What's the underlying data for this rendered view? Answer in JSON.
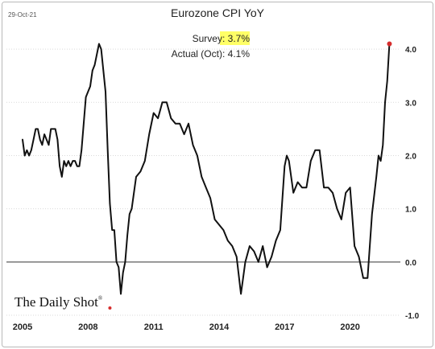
{
  "date_stamp": "29-Oct-21",
  "brand": "The Daily Shot",
  "brand_mark": "®",
  "colors": {
    "line": "#111111",
    "latest_point": "#d62d2d",
    "survey_highlight": "#ffff66"
  },
  "chart_data": {
    "type": "line",
    "title": "Eurozone CPI YoY",
    "annotations": [
      {
        "label": "Survey: ",
        "value": "3.7%",
        "highlight": true
      },
      {
        "label": "Actual (Oct): ",
        "value": "4.1%",
        "highlight": false
      }
    ],
    "xlabel": "",
    "ylabel": "",
    "xlim": [
      2005.0,
      2022.3
    ],
    "ylim": [
      -1.0,
      4.5
    ],
    "x_ticks": [
      2005,
      2008,
      2011,
      2014,
      2017,
      2020
    ],
    "x_tick_labels": [
      "2005",
      "2008",
      "2011",
      "2014",
      "2017",
      "2020"
    ],
    "y_ticks": [
      -1,
      0,
      1,
      2,
      3,
      4
    ],
    "y_tick_labels": [
      "-1.0",
      "0.0",
      "1.0",
      "2.0",
      "3.0",
      "4.0"
    ],
    "y_axis_side": "right",
    "grid": true,
    "legend": "none",
    "series": [
      {
        "x": [
          2005.0,
          2005.1,
          2005.2,
          2005.3,
          2005.4,
          2005.5,
          2005.6,
          2005.7,
          2005.8,
          2005.9,
          2006.0,
          2006.1,
          2006.2,
          2006.3,
          2006.4,
          2006.5,
          2006.6,
          2006.7,
          2006.8,
          2006.9,
          2007.0,
          2007.1,
          2007.2,
          2007.3,
          2007.4,
          2007.5,
          2007.6,
          2007.7,
          2007.8,
          2007.9,
          2008.0,
          2008.1,
          2008.2,
          2008.3,
          2008.4,
          2008.5,
          2008.6,
          2008.7,
          2008.8,
          2008.9,
          2009.0,
          2009.1,
          2009.2,
          2009.3,
          2009.4,
          2009.5,
          2009.6,
          2009.7,
          2009.8,
          2009.9,
          2010.0,
          2010.2,
          2010.4,
          2010.6,
          2010.8,
          2011.0,
          2011.2,
          2011.4,
          2011.6,
          2011.8,
          2012.0,
          2012.2,
          2012.4,
          2012.6,
          2012.8,
          2013.0,
          2013.2,
          2013.4,
          2013.6,
          2013.8,
          2014.0,
          2014.2,
          2014.4,
          2014.6,
          2014.8,
          2015.0,
          2015.1,
          2015.2,
          2015.4,
          2015.6,
          2015.8,
          2016.0,
          2016.2,
          2016.4,
          2016.6,
          2016.8,
          2017.0,
          2017.1,
          2017.2,
          2017.4,
          2017.6,
          2017.8,
          2018.0,
          2018.2,
          2018.4,
          2018.6,
          2018.8,
          2019.0,
          2019.2,
          2019.4,
          2019.6,
          2019.8,
          2020.0,
          2020.2,
          2020.4,
          2020.6,
          2020.8,
          2021.0,
          2021.2,
          2021.3,
          2021.4,
          2021.5,
          2021.6,
          2021.7,
          2021.8
        ],
        "y": [
          2.3,
          2.0,
          2.1,
          2.0,
          2.1,
          2.3,
          2.5,
          2.5,
          2.3,
          2.2,
          2.4,
          2.3,
          2.2,
          2.5,
          2.5,
          2.5,
          2.3,
          1.8,
          1.6,
          1.9,
          1.8,
          1.9,
          1.8,
          1.9,
          1.9,
          1.8,
          1.8,
          2.1,
          2.6,
          3.1,
          3.2,
          3.3,
          3.6,
          3.7,
          3.9,
          4.1,
          4.0,
          3.6,
          3.2,
          2.1,
          1.1,
          0.6,
          0.6,
          0.0,
          -0.1,
          -0.6,
          -0.2,
          0.0,
          0.5,
          0.9,
          1.0,
          1.6,
          1.7,
          1.9,
          2.4,
          2.8,
          2.7,
          3.0,
          3.0,
          2.7,
          2.6,
          2.6,
          2.4,
          2.6,
          2.2,
          2.0,
          1.6,
          1.4,
          1.2,
          0.8,
          0.7,
          0.6,
          0.4,
          0.3,
          0.1,
          -0.6,
          -0.3,
          0.0,
          0.3,
          0.2,
          0.0,
          0.3,
          -0.1,
          0.1,
          0.4,
          0.6,
          1.8,
          2.0,
          1.9,
          1.3,
          1.5,
          1.4,
          1.4,
          1.9,
          2.1,
          2.1,
          1.4,
          1.4,
          1.3,
          1.0,
          0.8,
          1.3,
          1.4,
          0.3,
          0.1,
          -0.3,
          -0.3,
          0.9,
          1.6,
          2.0,
          1.9,
          2.2,
          3.0,
          3.4,
          4.1
        ]
      }
    ],
    "latest_point": {
      "x": 2021.8,
      "y": 4.1
    },
    "brand_dot_x": 2009.0
  }
}
